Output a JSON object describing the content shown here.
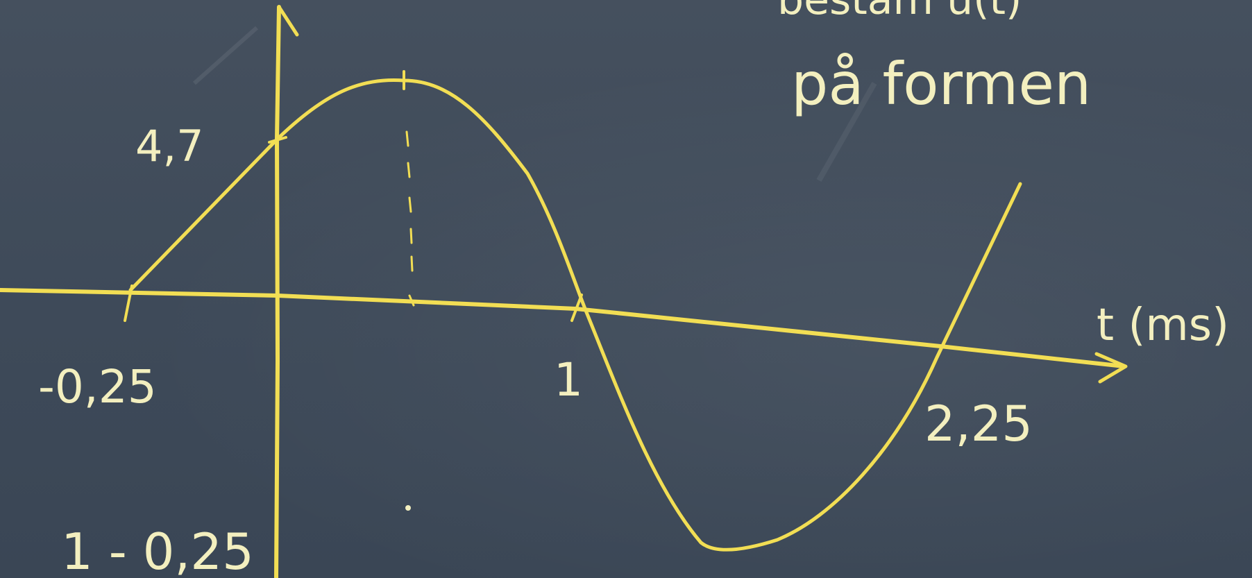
{
  "board": {
    "top_text_fragment": "bestäm u(t)",
    "top_text_line2": "på formen"
  },
  "axes": {
    "x_label": "t (ms)"
  },
  "labels": {
    "y_intercept": "4,7",
    "x_tick_neg": "-0,25",
    "x_tick_1": "1",
    "x_tick_2": "2,25",
    "bottom_note": "1 - 0,25"
  },
  "colors": {
    "board": "#3f4b5a",
    "chalk_yellow": "#f2de54",
    "chalk_white": "#f3efbf"
  }
}
